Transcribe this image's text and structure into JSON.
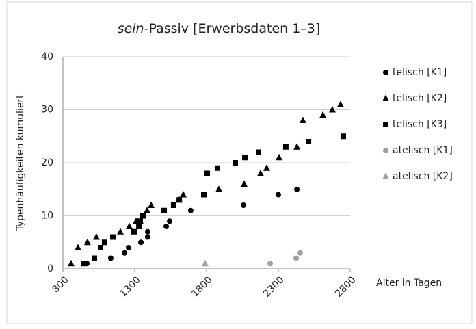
{
  "chart_data": {
    "type": "scatter",
    "title_italic": "sein",
    "title_rest": "-Passiv [Erwerbsdaten 1–3]",
    "x_label": "Alter in Tagen",
    "y_label": "Typenhäufigkeiten kumuliert",
    "xlim": [
      800,
      2800
    ],
    "xticks": [
      800,
      1300,
      1800,
      2300,
      2800
    ],
    "ylim": [
      0,
      40
    ],
    "yticks": [
      0,
      10,
      20,
      30,
      40
    ],
    "grid": true,
    "legend": "right",
    "series": [
      {
        "name": "telisch [K1]",
        "color": "#000000",
        "marker": "circle",
        "x": [
          967,
          1133,
          1229,
          1257,
          1343,
          1390,
          1390,
          1519,
          1543,
          1690,
          2057,
          2300,
          2429
        ],
        "values": [
          1,
          2,
          3,
          4,
          5,
          6,
          7,
          8,
          9,
          11,
          12,
          14,
          15
        ]
      },
      {
        "name": "telisch [K2]",
        "color": "#000000",
        "marker": "triangle",
        "x": [
          857,
          905,
          971,
          1033,
          1200,
          1262,
          1310,
          1338,
          1386,
          1414,
          1610,
          1638,
          1886,
          2062,
          2176,
          2219,
          2305,
          2429,
          2471,
          2610,
          2676,
          2733
        ],
        "values": [
          1,
          4,
          5,
          6,
          7,
          8,
          9,
          9,
          11,
          12,
          13,
          14,
          15,
          16,
          18,
          19,
          21,
          23,
          28,
          29,
          30,
          31
        ]
      },
      {
        "name": "telisch [K3]",
        "color": "#000000",
        "marker": "square",
        "x": [
          943,
          1019,
          1062,
          1090,
          1148,
          1295,
          1329,
          1338,
          1357,
          1505,
          1571,
          1610,
          1781,
          1805,
          1876,
          2000,
          2067,
          2162,
          2352,
          2510,
          2752
        ],
        "values": [
          1,
          2,
          4,
          5,
          6,
          7,
          8,
          9,
          10,
          11,
          12,
          13,
          14,
          18,
          19,
          20,
          21,
          22,
          23,
          24,
          25
        ]
      },
      {
        "name": "atelisch [K1]",
        "color": "#a0a0a0",
        "marker": "circle",
        "x": [
          2243,
          2424,
          2452
        ],
        "values": [
          1,
          2,
          3
        ]
      },
      {
        "name": "atelisch [K2]",
        "color": "#a0a0a0",
        "marker": "triangle",
        "x": [
          1790
        ],
        "values": [
          1
        ]
      }
    ]
  }
}
